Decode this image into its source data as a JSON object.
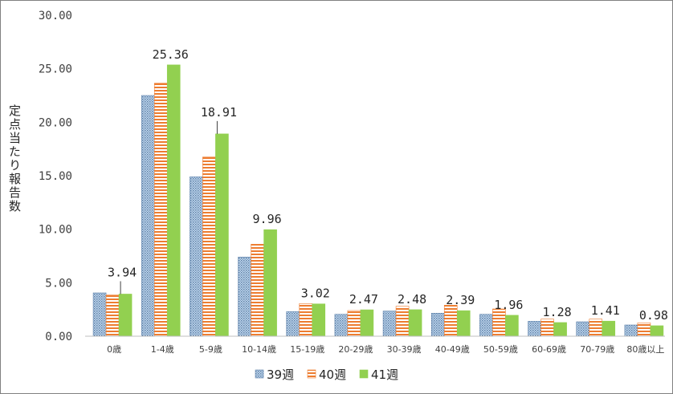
{
  "chart_data": {
    "type": "bar",
    "ylabel": "定点当たり報告数",
    "ylim": [
      0,
      30
    ],
    "yticks": [
      "0.00",
      "5.00",
      "10.00",
      "15.00",
      "20.00",
      "25.00",
      "30.00"
    ],
    "grid": false,
    "legend_position": "bottom",
    "categories": [
      "0歳",
      "1-4歳",
      "5-9歳",
      "10-14歳",
      "15-19歳",
      "20-29歳",
      "30-39歳",
      "40-49歳",
      "50-59歳",
      "60-69歳",
      "70-79歳",
      "80歳以上"
    ],
    "series": [
      {
        "name": "39週",
        "color": "#9dc3e6",
        "pattern": "dots",
        "values": [
          4.05,
          22.5,
          14.9,
          7.4,
          2.3,
          2.05,
          2.35,
          2.15,
          2.05,
          1.4,
          1.35,
          1.05
        ]
      },
      {
        "name": "40週",
        "color": "#ed7d31",
        "pattern": "horizontal-stripes",
        "values": [
          3.85,
          23.65,
          16.75,
          8.6,
          3.05,
          2.4,
          2.8,
          2.9,
          2.55,
          1.6,
          1.6,
          1.25
        ]
      },
      {
        "name": "41週",
        "color": "#92d050",
        "pattern": "solid",
        "values": [
          3.94,
          25.36,
          18.91,
          9.96,
          3.02,
          2.47,
          2.48,
          2.39,
          1.96,
          1.28,
          1.41,
          0.98
        ]
      }
    ],
    "data_labels": [
      "3.94",
      "25.36",
      "18.91",
      "9.96",
      "3.02",
      "2.47",
      "2.48",
      "2.39",
      "1.96",
      "1.28",
      "1.41",
      "0.98"
    ]
  }
}
